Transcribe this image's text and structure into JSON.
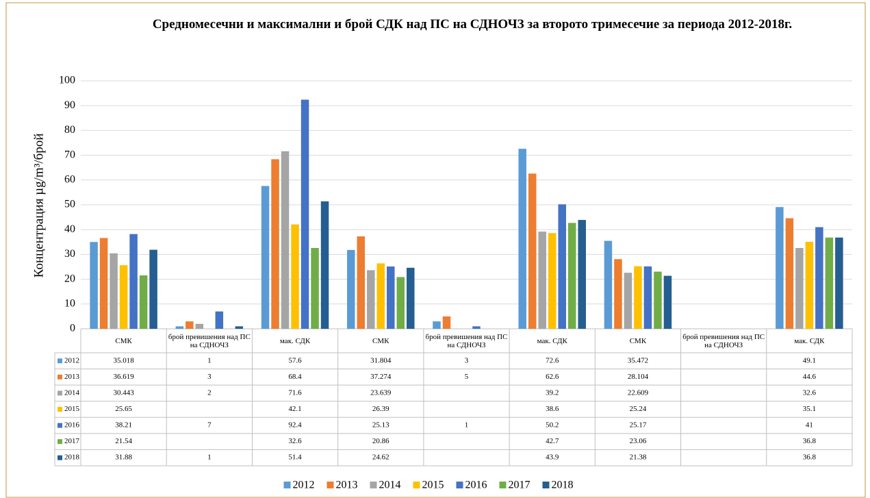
{
  "chart_data": {
    "type": "bar",
    "title": "Средномесечни и максимални и брой СДК над ПС на СДНОЧЗ за второто тримесечие за периода 2012-2018г.",
    "ylabel": "Концентрация µg/m³/брой",
    "categories": [
      "СМК",
      "брой превишения над ПС на СДНОЧЗ",
      "мак. СДК",
      "СМК",
      "брой превишения над ПС на СДНОЧЗ",
      "мак. СДК",
      "СМК",
      "брой превишения над ПС на СДНОЧЗ",
      "мак. СДК"
    ],
    "series": [
      {
        "name": "2012",
        "color": "#5b9bd5",
        "values": [
          35.018,
          1,
          57.6,
          31.804,
          3,
          72.6,
          35.472,
          null,
          49.1
        ]
      },
      {
        "name": "2013",
        "color": "#ed7d31",
        "values": [
          36.619,
          3,
          68.4,
          37.274,
          5,
          62.6,
          28.104,
          null,
          44.6
        ]
      },
      {
        "name": "2014",
        "color": "#a5a5a5",
        "values": [
          30.443,
          2,
          71.6,
          23.639,
          null,
          39.2,
          22.609,
          null,
          32.6
        ]
      },
      {
        "name": "2015",
        "color": "#ffc000",
        "values": [
          25.65,
          null,
          42.1,
          26.39,
          null,
          38.6,
          25.24,
          null,
          35.1
        ]
      },
      {
        "name": "2016",
        "color": "#4472c4",
        "values": [
          38.21,
          7,
          92.4,
          25.13,
          1,
          50.2,
          25.17,
          null,
          41
        ]
      },
      {
        "name": "2017",
        "color": "#70ad47",
        "values": [
          21.54,
          null,
          32.6,
          20.86,
          null,
          42.7,
          23.06,
          null,
          36.8
        ]
      },
      {
        "name": "2018",
        "color": "#255e91",
        "values": [
          31.88,
          1,
          51.4,
          24.62,
          null,
          43.9,
          21.38,
          null,
          36.8
        ]
      }
    ],
    "ylim": [
      0,
      100
    ],
    "yticks": [
      0,
      10,
      20,
      30,
      40,
      50,
      60,
      70,
      80,
      90,
      100
    ],
    "grid": true,
    "legend": "bottom"
  }
}
